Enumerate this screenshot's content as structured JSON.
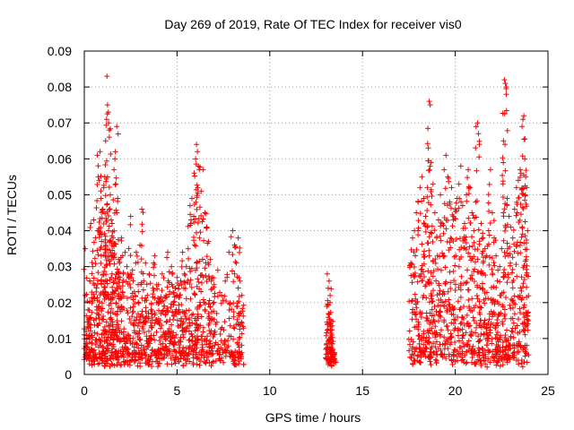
{
  "chart_data": {
    "type": "scatter",
    "title": "Day 269 of 2019, Rate Of TEC Index for receiver vis0",
    "xlabel": "GPS time / hours",
    "ylabel": "ROTI / TECUs",
    "xlim": [
      0,
      25
    ],
    "ylim": [
      0,
      0.09
    ],
    "xticks": [
      0,
      5,
      10,
      15,
      20,
      25
    ],
    "yticks": [
      0,
      0.01,
      0.02,
      0.03,
      0.04,
      0.05,
      0.06,
      0.07,
      0.08,
      0.09
    ],
    "xtick_labels": [
      "0",
      "5",
      "10",
      "15",
      "20",
      "25"
    ],
    "ytick_labels": [
      "0",
      "0.01",
      "0.02",
      "0.03",
      "0.04",
      "0.05",
      "0.06",
      "0.07",
      "0.08",
      "0.09"
    ],
    "grid": true,
    "marker": "+",
    "color": "#ff0000",
    "series": [
      {
        "name": "ROTI",
        "note": "dense scatter; representative sample of visible points",
        "points": [
          [
            0.05,
            0.035
          ],
          [
            0.1,
            0.012
          ],
          [
            0.2,
            0.018
          ],
          [
            0.3,
            0.026
          ],
          [
            0.35,
            0.042
          ],
          [
            0.45,
            0.03
          ],
          [
            0.5,
            0.043
          ],
          [
            0.6,
            0.038
          ],
          [
            0.7,
            0.061
          ],
          [
            0.75,
            0.055
          ],
          [
            0.8,
            0.054
          ],
          [
            0.85,
            0.062
          ],
          [
            0.9,
            0.049
          ],
          [
            0.95,
            0.039
          ],
          [
            1.0,
            0.046
          ],
          [
            1.05,
            0.052
          ],
          [
            1.1,
            0.055
          ],
          [
            1.15,
            0.065
          ],
          [
            1.2,
            0.071
          ],
          [
            1.22,
            0.083
          ],
          [
            1.25,
            0.075
          ],
          [
            1.3,
            0.073
          ],
          [
            1.35,
            0.068
          ],
          [
            1.4,
            0.05
          ],
          [
            1.45,
            0.043
          ],
          [
            1.5,
            0.042
          ],
          [
            1.55,
            0.038
          ],
          [
            1.6,
            0.057
          ],
          [
            1.65,
            0.06
          ],
          [
            1.7,
            0.053
          ],
          [
            1.75,
            0.069
          ],
          [
            1.8,
            0.049
          ],
          [
            1.85,
            0.032
          ],
          [
            1.9,
            0.031
          ],
          [
            2.0,
            0.038
          ],
          [
            2.1,
            0.028
          ],
          [
            2.2,
            0.034
          ],
          [
            2.3,
            0.03
          ],
          [
            2.4,
            0.027
          ],
          [
            2.5,
            0.044
          ],
          [
            2.6,
            0.029
          ],
          [
            2.7,
            0.023
          ],
          [
            2.8,
            0.034
          ],
          [
            2.9,
            0.025
          ],
          [
            3.0,
            0.036
          ],
          [
            3.1,
            0.046
          ],
          [
            3.2,
            0.026
          ],
          [
            3.3,
            0.031
          ],
          [
            3.4,
            0.022
          ],
          [
            3.5,
            0.028
          ],
          [
            3.6,
            0.018
          ],
          [
            3.7,
            0.024
          ],
          [
            3.8,
            0.033
          ],
          [
            3.9,
            0.02
          ],
          [
            4.0,
            0.025
          ],
          [
            4.1,
            0.021
          ],
          [
            4.2,
            0.028
          ],
          [
            4.3,
            0.019
          ],
          [
            4.4,
            0.022
          ],
          [
            4.5,
            0.034
          ],
          [
            4.6,
            0.023
          ],
          [
            4.7,
            0.03
          ],
          [
            4.8,
            0.02
          ],
          [
            4.9,
            0.024
          ],
          [
            5.0,
            0.027
          ],
          [
            5.1,
            0.018
          ],
          [
            5.2,
            0.026
          ],
          [
            5.3,
            0.034
          ],
          [
            5.4,
            0.028
          ],
          [
            5.5,
            0.03
          ],
          [
            5.6,
            0.035
          ],
          [
            5.7,
            0.047
          ],
          [
            5.8,
            0.049
          ],
          [
            5.9,
            0.044
          ],
          [
            6.0,
            0.06
          ],
          [
            6.05,
            0.064
          ],
          [
            6.1,
            0.062
          ],
          [
            6.15,
            0.058
          ],
          [
            6.2,
            0.057
          ],
          [
            6.3,
            0.051
          ],
          [
            6.4,
            0.057
          ],
          [
            6.5,
            0.045
          ],
          [
            6.6,
            0.041
          ],
          [
            6.7,
            0.037
          ],
          [
            6.8,
            0.032
          ],
          [
            6.9,
            0.027
          ],
          [
            7.0,
            0.025
          ],
          [
            7.2,
            0.029
          ],
          [
            7.4,
            0.022
          ],
          [
            7.6,
            0.026
          ],
          [
            7.8,
            0.034
          ],
          [
            8.0,
            0.04
          ],
          [
            8.1,
            0.036
          ],
          [
            8.2,
            0.031
          ],
          [
            8.3,
            0.038
          ],
          [
            8.4,
            0.026
          ],
          [
            8.5,
            0.022
          ],
          [
            13.1,
            0.028
          ],
          [
            13.15,
            0.024
          ],
          [
            13.2,
            0.026
          ],
          [
            13.25,
            0.02
          ],
          [
            13.3,
            0.015
          ],
          [
            13.35,
            0.011
          ],
          [
            13.4,
            0.007
          ],
          [
            13.45,
            0.005
          ],
          [
            17.6,
            0.031
          ],
          [
            17.7,
            0.038
          ],
          [
            17.8,
            0.04
          ],
          [
            17.9,
            0.045
          ],
          [
            18.0,
            0.048
          ],
          [
            18.1,
            0.052
          ],
          [
            18.2,
            0.055
          ],
          [
            18.3,
            0.049
          ],
          [
            18.4,
            0.044
          ],
          [
            18.5,
            0.041
          ],
          [
            18.55,
            0.063
          ],
          [
            18.6,
            0.076
          ],
          [
            18.65,
            0.075
          ],
          [
            18.7,
            0.059
          ],
          [
            18.8,
            0.053
          ],
          [
            18.9,
            0.045
          ],
          [
            19.0,
            0.038
          ],
          [
            19.1,
            0.043
          ],
          [
            19.2,
            0.05
          ],
          [
            19.3,
            0.042
          ],
          [
            19.4,
            0.057
          ],
          [
            19.5,
            0.061
          ],
          [
            19.6,
            0.055
          ],
          [
            19.7,
            0.048
          ],
          [
            19.8,
            0.052
          ],
          [
            19.9,
            0.044
          ],
          [
            20.0,
            0.046
          ],
          [
            20.1,
            0.049
          ],
          [
            20.2,
            0.053
          ],
          [
            20.3,
            0.058
          ],
          [
            20.4,
            0.047
          ],
          [
            20.5,
            0.042
          ],
          [
            20.6,
            0.05
          ],
          [
            20.7,
            0.057
          ],
          [
            20.8,
            0.052
          ],
          [
            20.9,
            0.045
          ],
          [
            21.0,
            0.04
          ],
          [
            21.1,
            0.048
          ],
          [
            21.2,
            0.07
          ],
          [
            21.25,
            0.067
          ],
          [
            21.3,
            0.064
          ],
          [
            21.4,
            0.042
          ],
          [
            21.5,
            0.038
          ],
          [
            21.6,
            0.035
          ],
          [
            21.7,
            0.033
          ],
          [
            21.8,
            0.04
          ],
          [
            21.9,
            0.057
          ],
          [
            22.0,
            0.045
          ],
          [
            22.1,
            0.038
          ],
          [
            22.2,
            0.033
          ],
          [
            22.3,
            0.029
          ],
          [
            22.4,
            0.03
          ],
          [
            22.5,
            0.035
          ],
          [
            22.6,
            0.065
          ],
          [
            22.65,
            0.082
          ],
          [
            22.7,
            0.081
          ],
          [
            22.75,
            0.08
          ],
          [
            22.8,
            0.049
          ],
          [
            22.9,
            0.044
          ],
          [
            23.0,
            0.041
          ],
          [
            23.1,
            0.038
          ],
          [
            23.2,
            0.046
          ],
          [
            23.3,
            0.052
          ],
          [
            23.4,
            0.054
          ],
          [
            23.5,
            0.057
          ],
          [
            23.6,
            0.069
          ],
          [
            23.65,
            0.071
          ],
          [
            23.7,
            0.072
          ],
          [
            23.75,
            0.06
          ],
          [
            23.8,
            0.055
          ],
          [
            23.85,
            0.052
          ],
          [
            23.9,
            0.04
          ]
        ]
      }
    ]
  }
}
